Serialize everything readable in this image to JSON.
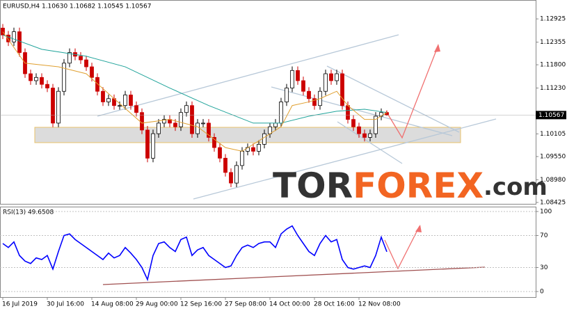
{
  "chart_data": [
    {
      "type": "candlestick",
      "title": "EURUSD,H4 1.10630 1.10682 1.10545 1.10567",
      "open": [
        1.127,
        1.1253,
        1.1236,
        1.1261,
        1.121,
        1.1158,
        1.1141,
        1.1149,
        1.1132,
        1.1123,
        1.1037,
        1.1115,
        1.1184,
        1.121,
        1.1201,
        1.1192,
        1.1175,
        1.1149,
        1.1115,
        1.1089,
        1.1097,
        1.108,
        1.108,
        1.1106,
        1.108,
        1.1063,
        1.102,
        1.0951,
        1.1011,
        1.1037,
        1.1046,
        1.1037,
        1.1028,
        1.1063,
        1.108,
        1.1011,
        1.1037,
        1.1037,
        1.1002,
        1.0977,
        1.0951,
        1.0916,
        1.089,
        1.0933,
        1.0968,
        1.0977,
        1.0968,
        1.0985,
        1.1011,
        1.1028,
        1.1037,
        1.1089,
        1.1123,
        1.1166,
        1.1141,
        1.1115,
        1.1097,
        1.108,
        1.1115,
        1.1158,
        1.1141,
        1.1158,
        1.108,
        1.1046,
        1.1028,
        1.1011,
        1.1002,
        1.1011,
        1.1054,
        1.1063
      ],
      "high": [
        1.128,
        1.1263,
        1.1271,
        1.1271,
        1.122,
        1.1168,
        1.1159,
        1.1159,
        1.1142,
        1.1133,
        1.1125,
        1.1194,
        1.122,
        1.122,
        1.1211,
        1.1202,
        1.1185,
        1.1159,
        1.1125,
        1.1107,
        1.1107,
        1.109,
        1.1116,
        1.1116,
        1.109,
        1.1073,
        1.103,
        1.1021,
        1.1047,
        1.1056,
        1.1056,
        1.1047,
        1.1073,
        1.109,
        1.109,
        1.1047,
        1.1047,
        1.1047,
        1.1012,
        1.0987,
        1.0961,
        1.0926,
        1.0943,
        1.0978,
        1.0987,
        1.0987,
        1.0995,
        1.1021,
        1.1038,
        1.1047,
        1.1099,
        1.1133,
        1.1176,
        1.1176,
        1.1151,
        1.1125,
        1.1107,
        1.1125,
        1.1168,
        1.1168,
        1.1168,
        1.1168,
        1.109,
        1.1056,
        1.1038,
        1.1021,
        1.1021,
        1.1064,
        1.1073,
        1.10682
      ],
      "low": [
        1.1243,
        1.1226,
        1.1226,
        1.12,
        1.1148,
        1.1131,
        1.1131,
        1.1122,
        1.1113,
        1.1027,
        1.1027,
        1.1105,
        1.1174,
        1.1191,
        1.1182,
        1.1165,
        1.1139,
        1.1105,
        1.1079,
        1.1079,
        1.107,
        1.107,
        1.107,
        1.107,
        1.1053,
        1.101,
        1.0941,
        1.0941,
        1.1001,
        1.1027,
        1.1027,
        1.1018,
        1.1018,
        1.1053,
        1.1001,
        1.1001,
        1.1027,
        1.0992,
        1.0967,
        1.0941,
        1.0906,
        1.088,
        1.088,
        1.0923,
        1.0958,
        1.0958,
        1.0958,
        1.0975,
        1.1001,
        1.1018,
        1.1027,
        1.1079,
        1.1113,
        1.1131,
        1.1105,
        1.1087,
        1.107,
        1.107,
        1.1105,
        1.1131,
        1.1131,
        1.107,
        1.1036,
        1.1018,
        1.1001,
        1.0992,
        1.0992,
        1.1001,
        1.1044,
        1.10545
      ],
      "close": [
        1.1253,
        1.1236,
        1.1261,
        1.121,
        1.1158,
        1.1141,
        1.1149,
        1.1132,
        1.1123,
        1.1037,
        1.1115,
        1.1184,
        1.121,
        1.1201,
        1.1192,
        1.1175,
        1.1149,
        1.1115,
        1.1089,
        1.1097,
        1.108,
        1.108,
        1.1106,
        1.108,
        1.1063,
        1.102,
        1.0951,
        1.1011,
        1.1037,
        1.1046,
        1.1037,
        1.1028,
        1.1063,
        1.108,
        1.1011,
        1.1037,
        1.1037,
        1.1002,
        1.0977,
        1.0951,
        1.0916,
        1.089,
        1.0933,
        1.0968,
        1.0977,
        1.0968,
        1.0985,
        1.1011,
        1.1028,
        1.1037,
        1.1089,
        1.1123,
        1.1166,
        1.1141,
        1.1115,
        1.1097,
        1.108,
        1.1115,
        1.1158,
        1.1141,
        1.1158,
        1.108,
        1.1046,
        1.1028,
        1.1011,
        1.1002,
        1.1011,
        1.1054,
        1.1063,
        1.10567
      ],
      "up_color": "#000000",
      "down_color": "#cc0000",
      "lines": [
        {
          "color": "#1fa39a",
          "x": [
            0,
            7,
            15,
            22,
            30,
            37,
            45,
            50,
            55,
            60,
            65,
            69
          ],
          "values": [
            1.1253,
            1.1218,
            1.1201,
            1.1175,
            1.1123,
            1.108,
            1.1037,
            1.1037,
            1.1054,
            1.1066,
            1.1071,
            1.1063
          ]
        },
        {
          "color": "#e0a030",
          "x": [
            0,
            4,
            10,
            15,
            20,
            25,
            30,
            35,
            40,
            43,
            47,
            50,
            52,
            55,
            57,
            60,
            62,
            65,
            67,
            69
          ],
          "values": [
            1.1261,
            1.1184,
            1.1175,
            1.1158,
            1.1097,
            1.1037,
            1.1046,
            1.1028,
            1.0977,
            1.0968,
            1.1002,
            1.1028,
            1.108,
            1.1089,
            1.1097,
            1.1115,
            1.108,
            1.1046,
            1.1046,
            1.1063
          ]
        }
      ],
      "last_price": 1.10567,
      "xlim": [
        -0.5,
        95.75
      ],
      "ylim": [
        1.0839,
        1.1332
      ],
      "yticks": [
        1.12925,
        1.12355,
        {
          "value": 1.118,
          "label": "1.11800"
        },
        {
          "value": 1.1123,
          "label": "1.11230"
        },
        1.10105,
        {
          "value": 1.0955,
          "label": "1.09550"
        },
        {
          "value": 1.0898,
          "label": "1.08980"
        },
        1.08425
      ]
    },
    {
      "type": "line",
      "title": "RSI(13) 49.6508",
      "color": "#0000ff",
      "values": [
        60,
        55,
        62,
        45,
        38,
        35,
        42,
        40,
        45,
        28,
        50,
        70,
        72,
        65,
        60,
        55,
        50,
        45,
        40,
        48,
        42,
        45,
        55,
        48,
        40,
        30,
        15,
        45,
        60,
        62,
        55,
        50,
        65,
        68,
        45,
        52,
        55,
        45,
        40,
        35,
        30,
        32,
        45,
        55,
        58,
        55,
        60,
        62,
        62,
        55,
        72,
        78,
        82,
        70,
        60,
        50,
        45,
        60,
        70,
        62,
        65,
        40,
        30,
        28,
        30,
        32,
        30,
        45,
        68,
        49.65
      ],
      "xlim": [
        -0.5,
        95.75
      ],
      "ylim": [
        0,
        100
      ],
      "yticks": [
        100,
        70,
        30,
        0
      ],
      "xticks": [
        {
          "value": 0,
          "label": "16 Jul 2019"
        },
        {
          "value": 8,
          "label": "30 Jul 16:00"
        },
        {
          "value": 16,
          "label": "14 Aug 08:00"
        },
        {
          "value": 24,
          "label": "29 Aug 00:00"
        },
        {
          "value": 32,
          "label": "12 Sep 16:00"
        },
        {
          "value": 40,
          "label": "27 Sep 08:00"
        },
        {
          "value": 48,
          "label": "14 Oct 00:00"
        },
        {
          "value": 56,
          "label": "28 Oct 16:00"
        },
        {
          "value": 64,
          "label": "12 Nov 08:00"
        }
      ]
    }
  ],
  "watermark": {
    "parts": [
      "TOR",
      "FOREX",
      ".com"
    ]
  }
}
